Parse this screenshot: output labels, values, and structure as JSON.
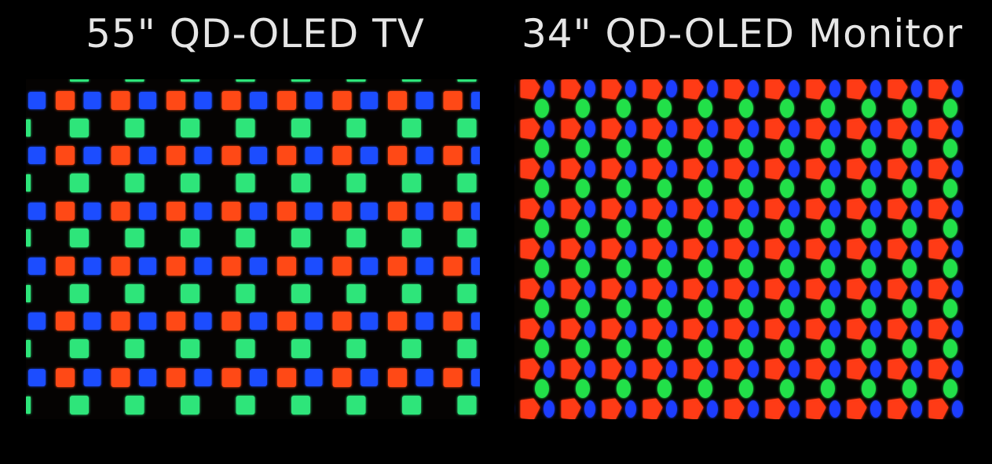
{
  "panels": [
    {
      "id": "tv",
      "title": "55\" QD-OLED TV",
      "layout": "square-grid",
      "colors": {
        "red": "#ff4a14",
        "green": "#2ee57a",
        "blue": "#1f4dff"
      }
    },
    {
      "id": "monitor",
      "title": "34\" QD-OLED Monitor",
      "layout": "triangular-staggered",
      "colors": {
        "red": "#ff3a12",
        "green": "#22e04a",
        "blue": "#1b3cff"
      }
    }
  ]
}
